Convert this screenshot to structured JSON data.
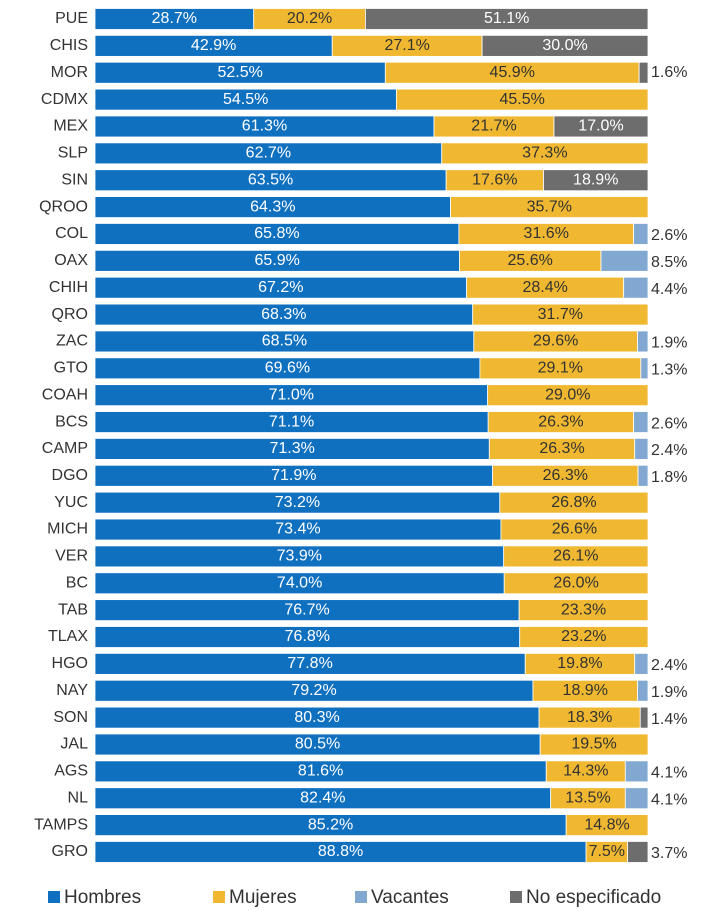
{
  "chart_data": {
    "type": "stacked_bar_horizontal",
    "categories": [
      "PUE",
      "CHIS",
      "MOR",
      "CDMX",
      "MEX",
      "SLP",
      "SIN",
      "QROO",
      "COL",
      "OAX",
      "CHIH",
      "QRO",
      "ZAC",
      "GTO",
      "COAH",
      "BCS",
      "CAMP",
      "DGO",
      "YUC",
      "MICH",
      "VER",
      "BC",
      "TAB",
      "TLAX",
      "HGO",
      "NAY",
      "SON",
      "JAL",
      "AGS",
      "NL",
      "TAMPS",
      "GRO"
    ],
    "xlim": [
      0,
      100
    ],
    "legend": "bottom",
    "series": [
      {
        "name": "Hombres",
        "color": "#1070c0",
        "values": [
          28.7,
          42.9,
          52.5,
          54.5,
          61.3,
          62.7,
          63.5,
          64.3,
          65.8,
          65.9,
          67.2,
          68.3,
          68.5,
          69.6,
          71.0,
          71.1,
          71.3,
          71.9,
          73.2,
          73.4,
          73.9,
          74.0,
          76.7,
          76.8,
          77.8,
          79.2,
          80.3,
          80.5,
          81.6,
          82.4,
          85.2,
          88.8
        ],
        "value_labels": [
          "28.7%",
          "42.9%",
          "52.5%",
          "54.5%",
          "61.3%",
          "62.7%",
          "63.5%",
          "64.3%",
          "65.8%",
          "65.9%",
          "67.2%",
          "68.3%",
          "68.5%",
          "69.6%",
          "71.0%",
          "71.1%",
          "71.3%",
          "71.9%",
          "73.2%",
          "73.4%",
          "73.9%",
          "74.0%",
          "76.7%",
          "76.8%",
          "77.8%",
          "79.2%",
          "80.3%",
          "80.5%",
          "81.6%",
          "82.4%",
          "85.2%",
          "88.8%"
        ]
      },
      {
        "name": "Mujeres",
        "color": "#f0b830",
        "values": [
          20.2,
          27.1,
          45.9,
          45.5,
          21.7,
          37.3,
          17.6,
          35.7,
          31.6,
          25.6,
          28.4,
          31.7,
          29.6,
          29.1,
          29.0,
          26.3,
          26.3,
          26.3,
          26.8,
          26.6,
          26.1,
          26.0,
          23.3,
          23.2,
          19.8,
          18.9,
          18.3,
          19.5,
          14.3,
          13.5,
          14.8,
          7.5
        ],
        "value_labels": [
          "20.2%",
          "27.1%",
          "45.9%",
          "45.5%",
          "21.7%",
          "37.3%",
          "17.6%",
          "35.7%",
          "31.6%",
          "25.6%",
          "28.4%",
          "31.7%",
          "29.6%",
          "29.1%",
          "29.0%",
          "26.3%",
          "26.3%",
          "26.3%",
          "26.8%",
          "26.6%",
          "26.1%",
          "26.0%",
          "23.3%",
          "23.2%",
          "19.8%",
          "18.9%",
          "18.3%",
          "19.5%",
          "14.3%",
          "13.5%",
          "14.8%",
          "7.5%"
        ]
      },
      {
        "name": "Vacantes",
        "color": "#80a8d0",
        "values": [
          null,
          null,
          null,
          null,
          null,
          null,
          null,
          null,
          2.6,
          8.5,
          4.4,
          null,
          1.9,
          1.3,
          null,
          2.6,
          2.4,
          1.8,
          null,
          null,
          null,
          null,
          null,
          null,
          2.4,
          1.9,
          null,
          null,
          4.1,
          4.1,
          null,
          null
        ],
        "value_labels": [
          null,
          null,
          null,
          null,
          null,
          null,
          null,
          null,
          "2.6%",
          "8.5%",
          "4.4%",
          null,
          "1.9%",
          "1.3%",
          null,
          "2.6%",
          "2.4%",
          "1.8%",
          null,
          null,
          null,
          null,
          null,
          null,
          "2.4%",
          "1.9%",
          null,
          null,
          "4.1%",
          "4.1%",
          null,
          null
        ]
      },
      {
        "name": "No especificado",
        "color": "#6d6d6d",
        "values": [
          51.1,
          30.0,
          1.6,
          null,
          17.0,
          null,
          18.9,
          null,
          null,
          null,
          null,
          null,
          null,
          null,
          null,
          null,
          null,
          null,
          null,
          null,
          null,
          null,
          null,
          null,
          null,
          null,
          1.4,
          null,
          null,
          null,
          null,
          3.7
        ],
        "value_labels": [
          "51.1%",
          "30.0%",
          "1.6%",
          null,
          "17.0%",
          null,
          "18.9%",
          null,
          null,
          null,
          null,
          null,
          null,
          null,
          null,
          null,
          null,
          null,
          null,
          null,
          null,
          null,
          null,
          null,
          null,
          null,
          "1.4%",
          null,
          null,
          null,
          null,
          "3.7%"
        ]
      }
    ]
  }
}
